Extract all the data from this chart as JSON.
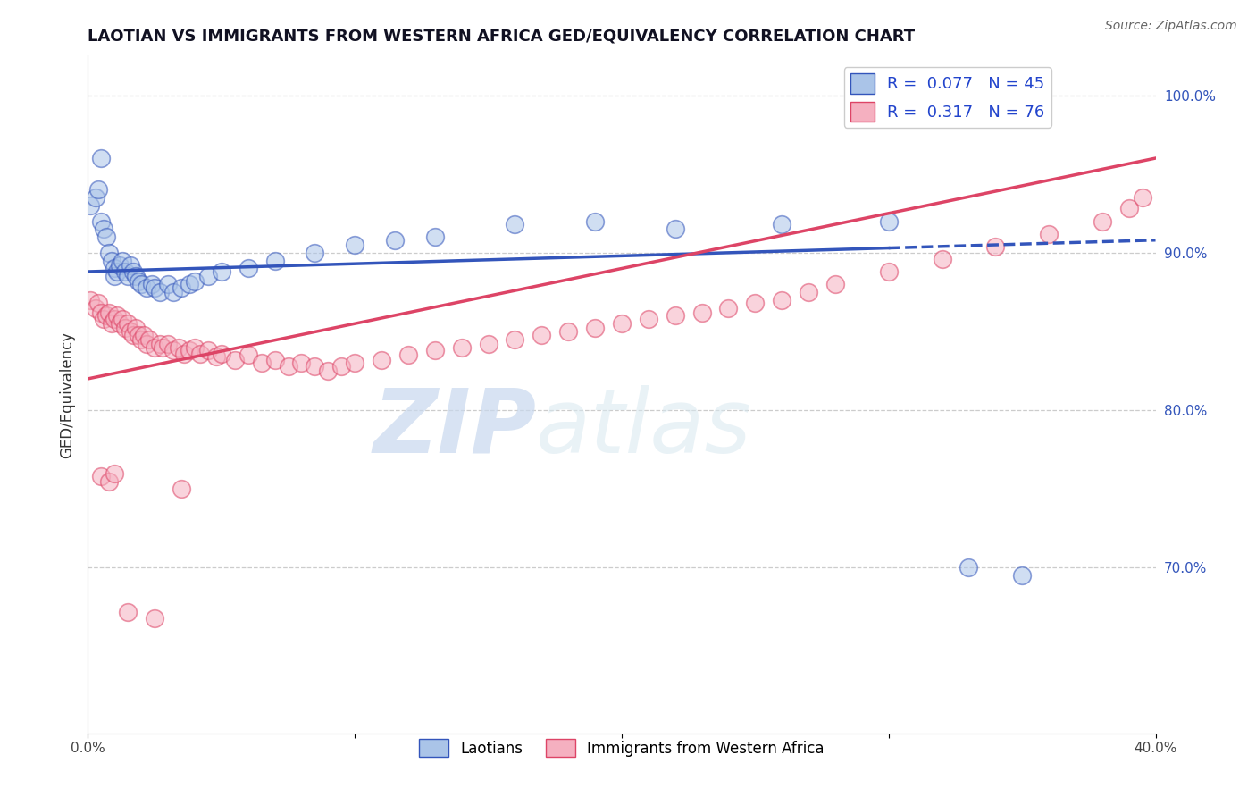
{
  "title": "LAOTIAN VS IMMIGRANTS FROM WESTERN AFRICA GED/EQUIVALENCY CORRELATION CHART",
  "source": "Source: ZipAtlas.com",
  "ylabel": "GED/Equivalency",
  "xlim": [
    0.0,
    0.4
  ],
  "ylim": [
    0.595,
    1.025
  ],
  "xticks": [
    0.0,
    0.1,
    0.2,
    0.3,
    0.4
  ],
  "xtick_labels": [
    "0.0%",
    "",
    "",
    "",
    "40.0%"
  ],
  "yticks_right": [
    1.0,
    0.9,
    0.8,
    0.7
  ],
  "ytick_right_labels": [
    "100.0%",
    "90.0%",
    "80.0%",
    "70.0%"
  ],
  "blue_color": "#aac4e8",
  "pink_color": "#f5b0c0",
  "blue_line_color": "#3355bb",
  "pink_line_color": "#dd4466",
  "legend_label_blue": "Laotians",
  "legend_label_pink": "Immigrants from Western Africa",
  "watermark_zip": "ZIP",
  "watermark_atlas": "atlas",
  "background_color": "#ffffff",
  "grid_color": "#cccccc",
  "blue_line_y0": 0.888,
  "blue_line_y1": 0.908,
  "pink_line_y0": 0.82,
  "pink_line_y1": 0.96,
  "blue_x": [
    0.001,
    0.003,
    0.004,
    0.005,
    0.006,
    0.007,
    0.008,
    0.009,
    0.01,
    0.01,
    0.011,
    0.012,
    0.013,
    0.014,
    0.015,
    0.016,
    0.017,
    0.018,
    0.019,
    0.02,
    0.022,
    0.024,
    0.025,
    0.027,
    0.03,
    0.032,
    0.035,
    0.038,
    0.04,
    0.045,
    0.05,
    0.06,
    0.07,
    0.085,
    0.1,
    0.115,
    0.13,
    0.16,
    0.19,
    0.22,
    0.26,
    0.3,
    0.33,
    0.35,
    0.005
  ],
  "blue_y": [
    0.93,
    0.935,
    0.94,
    0.92,
    0.915,
    0.91,
    0.9,
    0.895,
    0.89,
    0.885,
    0.888,
    0.892,
    0.895,
    0.888,
    0.885,
    0.892,
    0.888,
    0.885,
    0.882,
    0.88,
    0.878,
    0.88,
    0.878,
    0.875,
    0.88,
    0.875,
    0.878,
    0.88,
    0.882,
    0.885,
    0.888,
    0.89,
    0.895,
    0.9,
    0.905,
    0.908,
    0.91,
    0.918,
    0.92,
    0.915,
    0.918,
    0.92,
    0.7,
    0.695,
    0.96
  ],
  "pink_x": [
    0.001,
    0.003,
    0.004,
    0.005,
    0.006,
    0.007,
    0.008,
    0.009,
    0.01,
    0.011,
    0.012,
    0.013,
    0.014,
    0.015,
    0.016,
    0.017,
    0.018,
    0.019,
    0.02,
    0.021,
    0.022,
    0.023,
    0.025,
    0.027,
    0.028,
    0.03,
    0.032,
    0.034,
    0.036,
    0.038,
    0.04,
    0.042,
    0.045,
    0.048,
    0.05,
    0.055,
    0.06,
    0.065,
    0.07,
    0.075,
    0.08,
    0.085,
    0.09,
    0.095,
    0.1,
    0.11,
    0.12,
    0.13,
    0.14,
    0.15,
    0.16,
    0.17,
    0.18,
    0.19,
    0.2,
    0.21,
    0.22,
    0.23,
    0.24,
    0.25,
    0.26,
    0.27,
    0.28,
    0.3,
    0.32,
    0.34,
    0.36,
    0.38,
    0.39,
    0.395,
    0.005,
    0.008,
    0.01,
    0.015,
    0.025,
    0.035
  ],
  "pink_y": [
    0.87,
    0.865,
    0.868,
    0.862,
    0.858,
    0.86,
    0.862,
    0.855,
    0.858,
    0.86,
    0.855,
    0.858,
    0.852,
    0.855,
    0.85,
    0.848,
    0.852,
    0.848,
    0.845,
    0.848,
    0.842,
    0.845,
    0.84,
    0.842,
    0.84,
    0.842,
    0.838,
    0.84,
    0.836,
    0.838,
    0.84,
    0.836,
    0.838,
    0.834,
    0.836,
    0.832,
    0.835,
    0.83,
    0.832,
    0.828,
    0.83,
    0.828,
    0.825,
    0.828,
    0.83,
    0.832,
    0.835,
    0.838,
    0.84,
    0.842,
    0.845,
    0.848,
    0.85,
    0.852,
    0.855,
    0.858,
    0.86,
    0.862,
    0.865,
    0.868,
    0.87,
    0.875,
    0.88,
    0.888,
    0.896,
    0.904,
    0.912,
    0.92,
    0.928,
    0.935,
    0.758,
    0.755,
    0.76,
    0.672,
    0.668,
    0.75
  ]
}
